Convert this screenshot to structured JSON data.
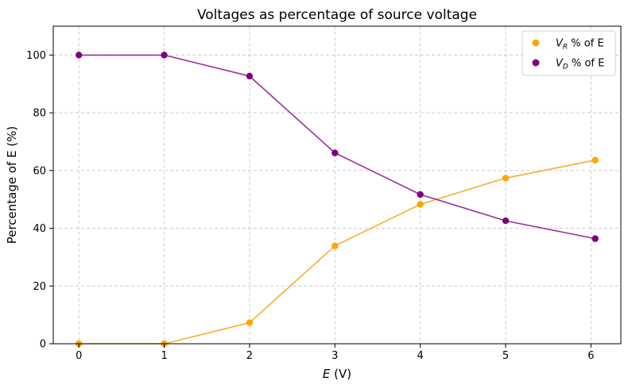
{
  "chart_data": {
    "type": "line",
    "title": "Voltages as percentage of source voltage",
    "xlabel_symbol": "E",
    "xlabel_unit": " (V)",
    "ylabel": "Percentage of E (%)",
    "xlim": [
      -0.3,
      6.35
    ],
    "ylim": [
      0,
      110
    ],
    "xticks": [
      0,
      1,
      2,
      3,
      4,
      5,
      6
    ],
    "yticks": [
      0,
      20,
      40,
      60,
      80,
      100
    ],
    "grid": true,
    "legend_position": "top-right",
    "x": [
      0,
      1,
      2,
      3,
      4,
      5,
      6.05
    ],
    "series": [
      {
        "name_symbol": "V",
        "name_sub": "R",
        "name_suffix": " % of E",
        "color": "#ffa500",
        "line_color": "#f6ae2d",
        "values": [
          0,
          0,
          7.3,
          33.9,
          48.3,
          57.4,
          63.6
        ]
      },
      {
        "name_symbol": "V",
        "name_sub": "D",
        "name_suffix": " % of E",
        "color": "#800080",
        "line_color": "#9b2d9b",
        "values": [
          100,
          100,
          92.7,
          66.1,
          51.7,
          42.6,
          36.4
        ]
      }
    ]
  }
}
